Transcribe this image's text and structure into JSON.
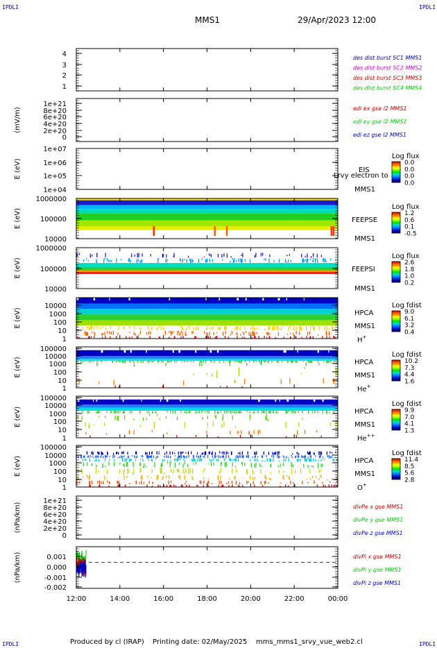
{
  "corners": {
    "tl": "IPDLI",
    "tr": "IPDLI",
    "bl": "IPDLI",
    "br": "IPDLI"
  },
  "header": {
    "left": "MMS1",
    "right": "29/Apr/2023 12:00"
  },
  "footer": {
    "producer": "Produced by cl (IRAP)",
    "printed": "Printing date: 02/May/2025",
    "script": "mms_mms1_srvy_vue_web2.cl"
  },
  "colors": {
    "blue": "#0000c8",
    "magenta": "#c800c8",
    "red": "#cc0000",
    "green": "#00cc00",
    "accent": "#000000"
  },
  "chart_data": {
    "type": "heatmap",
    "x_ticks": [
      "12:00",
      "14:00",
      "16:00",
      "18:00",
      "20:00",
      "22:00",
      "00:00"
    ],
    "x_range_hours": [
      12,
      24
    ],
    "panels": [
      {
        "id": "p1",
        "kind": "line",
        "ylabel": "",
        "yticks": [
          "4",
          "3",
          "2",
          "1"
        ],
        "yrange": [
          0.5,
          4.5
        ],
        "legend": [
          {
            "text": "des dist burst SC1 MMS1",
            "color": "blue"
          },
          {
            "text": "des dist burst SC2 MMS2",
            "color": "magenta"
          },
          {
            "text": "des dist burst SC3 MMS3",
            "color": "red"
          },
          {
            "text": "des dist burst SC4 MMS4",
            "color": "green"
          }
        ],
        "series": []
      },
      {
        "id": "p2",
        "kind": "line",
        "ylabel": "(mV/m)",
        "yticks": [
          "1e+21",
          "8e+20",
          "6e+20",
          "4e+20",
          "2e+20",
          "0"
        ],
        "yrange": [
          0,
          1e+21
        ],
        "zero_line": true,
        "legend": [
          {
            "text": "edi ex gse l2 MMS1",
            "color": "red"
          },
          {
            "text": "edi ey gse l2 MMS1",
            "color": "green"
          },
          {
            "text": "edi ez gse l2 MMS1",
            "color": "blue"
          }
        ],
        "series": []
      },
      {
        "id": "p3",
        "kind": "spec",
        "ylabel": "E (eV)",
        "yticks": [
          "1e+07",
          "1e+06",
          "1e+05",
          "1e+04"
        ],
        "log_yrange": [
          4,
          7
        ],
        "labels": [
          "EIS"
        ],
        "labels_bottom": [
          "MMS1"
        ],
        "overlay": "Lrvy electron to",
        "cb_title": "Log flux",
        "cb_values": [
          "0.0",
          "0.0",
          "0.0",
          "0.0"
        ],
        "bands": []
      },
      {
        "id": "p4",
        "kind": "spec",
        "ylabel": "E (eV)",
        "yticks": [
          "1000000",
          "100000",
          "10000"
        ],
        "log_yrange": [
          4,
          6.1
        ],
        "labels": [
          "FEEPSE"
        ],
        "labels_bottom": [
          "MMS1"
        ],
        "cb_title": "Log flux",
        "cb_values": [
          "1.2",
          "0.6",
          "0.1",
          "-0.5"
        ],
        "bands": [
          {
            "lo": 6.0,
            "hi": 6.1,
            "color": "#ffe000",
            "density": 1
          },
          {
            "lo": 5.75,
            "hi": 6.0,
            "color": "#1818d0",
            "density": 1
          },
          {
            "lo": 5.55,
            "hi": 5.75,
            "color": "#00b4ff",
            "density": 1
          },
          {
            "lo": 5.3,
            "hi": 5.55,
            "color": "#00dcb4",
            "density": 1
          },
          {
            "lo": 4.95,
            "hi": 5.3,
            "color": "#20d020",
            "density": 1
          },
          {
            "lo": 4.65,
            "hi": 4.95,
            "color": "#a0e800",
            "density": 1
          },
          {
            "lo": 4.45,
            "hi": 4.65,
            "color": "#e0f000",
            "density": 1
          }
        ],
        "spikes": [
          {
            "t": 15.55,
            "color": "#ff3000"
          },
          {
            "t": 18.35,
            "color": "#ff6000"
          },
          {
            "t": 18.9,
            "color": "#ff6000"
          },
          {
            "t": 23.7,
            "color": "#ff3000"
          },
          {
            "t": 23.8,
            "color": "#ff3000"
          }
        ]
      },
      {
        "id": "p5",
        "kind": "spec",
        "ylabel": "E (eV)",
        "yticks": [
          "1000000",
          "100000",
          "10000"
        ],
        "log_yrange": [
          4,
          6
        ],
        "labels": [
          "FEEPSI"
        ],
        "labels_bottom": [
          "MMS1"
        ],
        "cb_title": "Log flux",
        "cb_values": [
          "2.6",
          "1.8",
          "1.0",
          "0.2"
        ],
        "bands": [
          {
            "lo": 5.5,
            "hi": 5.75,
            "color": "#2020d0",
            "density": 0.25
          },
          {
            "lo": 5.25,
            "hi": 5.5,
            "color": "#00a0ff",
            "density": 0.45
          },
          {
            "lo": 5.05,
            "hi": 5.25,
            "color": "#00dcc0",
            "density": 1
          },
          {
            "lo": 4.9,
            "hi": 5.05,
            "color": "#30d030",
            "density": 1
          },
          {
            "lo": 4.8,
            "hi": 4.9,
            "color": "#ff9000",
            "density": 1
          },
          {
            "lo": 4.72,
            "hi": 4.8,
            "color": "#e00000",
            "density": 1
          }
        ]
      },
      {
        "id": "p6",
        "kind": "spec",
        "ylabel": "E (eV)",
        "yticks": [
          "10000",
          "1000",
          "100",
          "10",
          "1"
        ],
        "log_yrange": [
          0,
          4.7
        ],
        "labels": [
          "HPCA",
          "MMS1"
        ],
        "species": "H",
        "sup": "+",
        "cb_title": "Log fdist",
        "cb_values": [
          "9.0",
          "6.1",
          "3.2",
          "0.4"
        ],
        "bands": [
          {
            "lo": 4.0,
            "hi": 4.7,
            "color": "#0000c0",
            "density": 1
          },
          {
            "lo": 3.4,
            "hi": 4.0,
            "color": "#0070ff",
            "density": 1
          },
          {
            "lo": 2.8,
            "hi": 3.4,
            "color": "#00d0d0",
            "density": 1
          },
          {
            "lo": 2.1,
            "hi": 2.8,
            "color": "#30d030",
            "density": 1
          },
          {
            "lo": 1.5,
            "hi": 2.1,
            "color": "#a0e000",
            "density": 1
          },
          {
            "lo": 0.9,
            "hi": 1.5,
            "color": "#ffd000",
            "density": 0.6
          },
          {
            "lo": 0.3,
            "hi": 0.9,
            "color": "#ff6000",
            "density": 0.45
          },
          {
            "lo": 0.0,
            "hi": 0.3,
            "color": "#e00000",
            "density": 0.35
          }
        ]
      },
      {
        "id": "p7",
        "kind": "spec",
        "ylabel": "E (eV)",
        "yticks": [
          "100000",
          "10000",
          "1000",
          "100",
          "10",
          "1"
        ],
        "log_yrange": [
          0,
          5
        ],
        "labels": [
          "HPCA",
          "MMS1"
        ],
        "species": "He",
        "sup": "+",
        "cb_title": "Log fdist",
        "cb_values": [
          "10.2",
          "7.3",
          "4.4",
          "1.6"
        ],
        "bands": [
          {
            "lo": 3.9,
            "hi": 4.6,
            "color": "#0000c0",
            "density": 1
          },
          {
            "lo": 3.55,
            "hi": 3.9,
            "color": "#2080ff",
            "density": 1
          },
          {
            "lo": 3.3,
            "hi": 3.55,
            "color": "#00e0ff",
            "density": 1
          },
          {
            "lo": 3.1,
            "hi": 3.3,
            "color": "#30d030",
            "density": 0.7
          },
          {
            "lo": 2.6,
            "hi": 3.1,
            "color": "#30d030",
            "density": 0.05
          },
          {
            "lo": 1.0,
            "hi": 2.6,
            "color": "#a0e000",
            "density": 0.04
          },
          {
            "lo": 0.3,
            "hi": 1.2,
            "color": "#ff8000",
            "density": 0.06
          },
          {
            "lo": 0.0,
            "hi": 0.3,
            "color": "#e00000",
            "density": 0.03
          }
        ]
      },
      {
        "id": "p8",
        "kind": "spec",
        "ylabel": "E (eV)",
        "yticks": [
          "100000",
          "10000",
          "1000",
          "100",
          "10",
          "1"
        ],
        "log_yrange": [
          0,
          5
        ],
        "labels": [
          "HPCA",
          "MMS1"
        ],
        "species": "He",
        "sup": "++",
        "cb_title": "Log fdist",
        "cb_values": [
          "9.9",
          "7.0",
          "4.1",
          "1.3"
        ],
        "bands": [
          {
            "lo": 4.0,
            "hi": 4.6,
            "color": "#0000c0",
            "density": 1
          },
          {
            "lo": 3.6,
            "hi": 4.0,
            "color": "#2080ff",
            "density": 1
          },
          {
            "lo": 3.25,
            "hi": 3.6,
            "color": "#00d8e8",
            "density": 1
          },
          {
            "lo": 2.9,
            "hi": 3.25,
            "color": "#30d030",
            "density": 0.6
          },
          {
            "lo": 2.0,
            "hi": 2.9,
            "color": "#60d000",
            "density": 0.15
          },
          {
            "lo": 1.0,
            "hi": 2.0,
            "color": "#c0e000",
            "density": 0.1
          },
          {
            "lo": 0.35,
            "hi": 1.0,
            "color": "#ff7000",
            "density": 0.1
          },
          {
            "lo": 0.0,
            "hi": 0.35,
            "color": "#e00000",
            "density": 0.05
          }
        ]
      },
      {
        "id": "p9",
        "kind": "spec",
        "ylabel": "E (eV)",
        "yticks": [
          "100000",
          "10000",
          "1000",
          "100",
          "10",
          "1"
        ],
        "log_yrange": [
          0,
          5
        ],
        "labels": [
          "HPCA",
          "MMS1"
        ],
        "species": "O",
        "sup": "+",
        "cb_title": "Log fdist",
        "cb_values": [
          "11.4",
          "8.5",
          "5.6",
          "2.8"
        ],
        "bands": [
          {
            "lo": 3.85,
            "hi": 4.3,
            "color": "#0000c0",
            "density": 0.55
          },
          {
            "lo": 3.45,
            "hi": 3.85,
            "color": "#2060ff",
            "density": 0.85
          },
          {
            "lo": 3.05,
            "hi": 3.45,
            "color": "#00d0d8",
            "density": 0.6
          },
          {
            "lo": 2.3,
            "hi": 3.05,
            "color": "#30d030",
            "density": 0.35
          },
          {
            "lo": 1.5,
            "hi": 2.3,
            "color": "#c0e000",
            "density": 0.3
          },
          {
            "lo": 0.8,
            "hi": 1.5,
            "color": "#ffb000",
            "density": 0.3
          },
          {
            "lo": 0.3,
            "hi": 0.8,
            "color": "#ff5000",
            "density": 0.35
          },
          {
            "lo": 0.0,
            "hi": 0.3,
            "color": "#d00000",
            "density": 0.3
          }
        ]
      },
      {
        "id": "p10",
        "kind": "line",
        "ylabel": "(nPa/km)",
        "yticks": [
          "1e+21",
          "8e+20",
          "6e+20",
          "4e+20",
          "2e+20",
          "0"
        ],
        "yrange": [
          0,
          1e+21
        ],
        "zero_line": true,
        "legend": [
          {
            "text": "divPe x gse MMS1",
            "color": "red"
          },
          {
            "text": "divPe y gse MMS1",
            "color": "green"
          },
          {
            "text": "divPe z gse MMS1",
            "color": "blue"
          }
        ],
        "series": []
      },
      {
        "id": "p11",
        "kind": "line",
        "ylabel": "(nPa/km)",
        "yticks": [
          "0.001",
          "0.000",
          "-0.001",
          "-0.002"
        ],
        "yrange": [
          -0.0025,
          0.0015
        ],
        "zero_line": true,
        "legend": [
          {
            "text": "divPi x gse MMS1",
            "color": "red"
          },
          {
            "text": "divPi y gse MMS1",
            "color": "green"
          },
          {
            "text": "divPi z gse MMS1",
            "color": "blue"
          }
        ],
        "burst": {
          "t_start": 12.0,
          "t_end": 12.45,
          "min": -0.0023,
          "max": 0.0013
        }
      }
    ]
  }
}
